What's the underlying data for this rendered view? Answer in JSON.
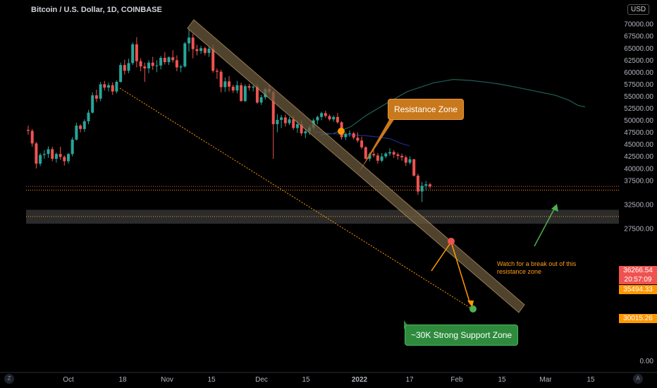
{
  "header": {
    "title": "Bitcoin / U.S. Dollar, 1D, COINBASE",
    "currency": "USD"
  },
  "chart_data": {
    "type": "candlestick",
    "title": "Bitcoin / U.S. Dollar, 1D, COINBASE",
    "ylim": [
      0,
      70000
    ],
    "y_ticks": [
      {
        "value": 70000,
        "label": "70000.00"
      },
      {
        "value": 67500,
        "label": "67500.00"
      },
      {
        "value": 65000,
        "label": "65000.00"
      },
      {
        "value": 62500,
        "label": "62500.00"
      },
      {
        "value": 60000,
        "label": "60000.00"
      },
      {
        "value": 57500,
        "label": "57500.00"
      },
      {
        "value": 55000,
        "label": "55000.00"
      },
      {
        "value": 52500,
        "label": "52500.00"
      },
      {
        "value": 50000,
        "label": "50000.00"
      },
      {
        "value": 47500,
        "label": "47500.00"
      },
      {
        "value": 45000,
        "label": "45000.00"
      },
      {
        "value": 42500,
        "label": "42500.00"
      },
      {
        "value": 40000,
        "label": "40000.00"
      },
      {
        "value": 37500,
        "label": "37500.00"
      },
      {
        "value": 32500,
        "label": "32500.00"
      },
      {
        "value": 27500,
        "label": "27500.00"
      },
      {
        "value": 0,
        "label": "0.00"
      }
    ],
    "x_ticks": [
      "Oct",
      "18",
      "Nov",
      "15",
      "Dec",
      "15",
      "2022",
      "17",
      "Feb",
      "15",
      "Mar",
      "15"
    ],
    "candles": [
      [
        48000,
        48900,
        47000,
        47800
      ],
      [
        47800,
        48200,
        44500,
        45200
      ],
      [
        45200,
        45500,
        40000,
        41000
      ],
      [
        41000,
        43200,
        40500,
        42800
      ],
      [
        42800,
        43800,
        42000,
        43000
      ],
      [
        43000,
        44600,
        42200,
        44000
      ],
      [
        44000,
        44500,
        41500,
        42000
      ],
      [
        42000,
        43300,
        41200,
        43000
      ],
      [
        43000,
        44500,
        41800,
        42400
      ],
      [
        42400,
        42700,
        40600,
        41500
      ],
      [
        41500,
        43200,
        41000,
        43000
      ],
      [
        43000,
        46500,
        42500,
        46000
      ],
      [
        46000,
        49500,
        45800,
        48900
      ],
      [
        48900,
        49200,
        47500,
        48200
      ],
      [
        48200,
        50200,
        47600,
        49800
      ],
      [
        49800,
        52200,
        49200,
        51600
      ],
      [
        51600,
        55800,
        51400,
        55200
      ],
      [
        55200,
        56400,
        53800,
        54500
      ],
      [
        54500,
        58000,
        54000,
        57500
      ],
      [
        57500,
        58200,
        56200,
        56800
      ],
      [
        56800,
        57800,
        56000,
        57300
      ],
      [
        57300,
        57900,
        55300,
        56000
      ],
      [
        56000,
        58300,
        55600,
        58000
      ],
      [
        58000,
        62000,
        57800,
        61500
      ],
      [
        61500,
        62600,
        59500,
        60300
      ],
      [
        60300,
        62800,
        59800,
        61900
      ],
      [
        61900,
        66200,
        61500,
        65800
      ],
      [
        65800,
        67300,
        61000,
        62300
      ],
      [
        62300,
        62900,
        60200,
        61200
      ],
      [
        61200,
        62000,
        58000,
        60800
      ],
      [
        60800,
        62500,
        59800,
        62000
      ],
      [
        62000,
        63200,
        60500,
        61300
      ],
      [
        61300,
        62500,
        60000,
        61400
      ],
      [
        61400,
        63400,
        60600,
        63000
      ],
      [
        63000,
        64200,
        61600,
        62100
      ],
      [
        62100,
        63300,
        61500,
        63100
      ],
      [
        63100,
        64600,
        62000,
        62500
      ],
      [
        62500,
        63500,
        60200,
        61000
      ],
      [
        61000,
        61500,
        60000,
        61200
      ],
      [
        61200,
        66300,
        61000,
        66000
      ],
      [
        66000,
        68800,
        64300,
        67200
      ],
      [
        67200,
        68000,
        62900,
        64800
      ],
      [
        64800,
        65700,
        63500,
        64400
      ],
      [
        64400,
        65500,
        63800,
        65000
      ],
      [
        65000,
        65300,
        63500,
        64000
      ],
      [
        64000,
        65300,
        63200,
        64900
      ],
      [
        64900,
        65800,
        59900,
        60300
      ],
      [
        60300,
        60800,
        58600,
        60100
      ],
      [
        60100,
        60500,
        55800,
        56900
      ],
      [
        56900,
        58900,
        55900,
        58100
      ],
      [
        58100,
        59200,
        56000,
        57000
      ],
      [
        57000,
        57400,
        55700,
        56200
      ],
      [
        56200,
        58200,
        55600,
        57300
      ],
      [
        57300,
        57800,
        53900,
        54000
      ],
      [
        54000,
        57500,
        53800,
        57100
      ],
      [
        57100,
        57600,
        56200,
        56800
      ],
      [
        56800,
        57300,
        56000,
        57000
      ],
      [
        57000,
        57500,
        53400,
        53700
      ],
      [
        53700,
        55300,
        53200,
        54800
      ],
      [
        54800,
        56800,
        54300,
        56500
      ],
      [
        56500,
        57400,
        55600,
        55900
      ],
      [
        55900,
        56100,
        42000,
        49200
      ],
      [
        49200,
        51300,
        47500,
        50100
      ],
      [
        50100,
        51100,
        48400,
        50600
      ],
      [
        50600,
        51200,
        48700,
        49400
      ],
      [
        49400,
        50700,
        49000,
        50200
      ],
      [
        50200,
        50900,
        48000,
        48400
      ],
      [
        48400,
        50000,
        47400,
        49200
      ],
      [
        49200,
        50000,
        46800,
        47300
      ],
      [
        47300,
        48200,
        46300,
        47700
      ],
      [
        47700,
        49000,
        47000,
        48500
      ],
      [
        48500,
        50400,
        48000,
        50000
      ],
      [
        50000,
        51000,
        49200,
        50700
      ],
      [
        50700,
        51800,
        50000,
        51500
      ],
      [
        51500,
        52000,
        50500,
        50900
      ],
      [
        50900,
        51200,
        49900,
        50200
      ],
      [
        50200,
        51000,
        49700,
        50700
      ],
      [
        50700,
        51500,
        49300,
        49600
      ],
      [
        49600,
        49800,
        46000,
        46500
      ],
      [
        46500,
        47500,
        45900,
        47200
      ],
      [
        47200,
        47900,
        46600,
        47300
      ],
      [
        47300,
        47600,
        46000,
        46400
      ],
      [
        46400,
        47500,
        45400,
        45800
      ],
      [
        45800,
        46600,
        44000,
        44400
      ],
      [
        44400,
        44600,
        41900,
        42000
      ],
      [
        42000,
        43300,
        41500,
        43000
      ],
      [
        43000,
        43800,
        42300,
        42700
      ],
      [
        42700,
        43200,
        41000,
        41600
      ],
      [
        41600,
        43200,
        41300,
        42500
      ],
      [
        42500,
        43400,
        42100,
        43100
      ],
      [
        43100,
        44200,
        42600,
        43400
      ],
      [
        43400,
        43800,
        42200,
        42900
      ],
      [
        42900,
        43300,
        41800,
        42600
      ],
      [
        42600,
        43100,
        41600,
        42300
      ],
      [
        42300,
        42700,
        40500,
        41200
      ],
      [
        41200,
        42500,
        40800,
        41900
      ],
      [
        41900,
        42000,
        38300,
        38500
      ],
      [
        38500,
        38900,
        34500,
        35200
      ],
      [
        35200,
        37200,
        33000,
        36400
      ],
      [
        36400,
        37400,
        35500,
        36700
      ],
      [
        36700,
        37000,
        35800,
        36266
      ]
    ],
    "moving_averages": [
      {
        "values": [
          [
            45500,
            47000
          ],
          [
            47300,
            47250
          ],
          [
            49800,
            48700
          ],
          [
            51900,
            51000
          ],
          [
            54800,
            53500
          ],
          [
            57800,
            56000
          ],
          [
            61500,
            57800
          ],
          [
            64300,
            58500
          ],
          [
            66700,
            58300
          ],
          [
            69100,
            57900
          ],
          [
            71000,
            57500
          ],
          [
            73500,
            56800
          ],
          [
            76200,
            56000
          ],
          [
            78800,
            55200
          ],
          [
            80800,
            54100
          ],
          [
            82000,
            53100
          ],
          [
            83000,
            52800
          ]
        ]
      },
      {
        "values": [
          [
            44500,
            47600
          ],
          [
            47300,
            47200
          ],
          [
            49300,
            47000
          ],
          [
            51900,
            46800
          ],
          [
            53800,
            46500
          ],
          [
            55300,
            46200
          ],
          [
            56900,
            45200
          ],
          [
            58100,
            44700
          ]
        ]
      }
    ],
    "levels": [
      {
        "label": "36266.54",
        "value": 36266.54
      },
      {
        "label": "20:57:09",
        "value": null
      },
      {
        "label": "35494.33",
        "value": 35494.33
      },
      {
        "label": "30015.26",
        "value": 30015.26
      }
    ],
    "annotations": {
      "resistance_zone": "Resistance Zone",
      "support_zone": "~30K Strong Support Zone",
      "note": "Watch for a break out of this\nresistance zone",
      "support_band": [
        28500,
        31400
      ]
    }
  },
  "colors": {
    "background": "#000000",
    "up": "#26a69a",
    "down": "#ef5350",
    "resistance_channel": "#c8a46e",
    "resistance_callout": "#c9781c",
    "support_callout": "#2e8b3d",
    "orange_dotted": "#ff9800",
    "arrow_green": "#4caf50",
    "ma_teal": "#1f5f55",
    "ma_blue": "#1e2a8c"
  },
  "footer_icons": [
    "Z",
    "A"
  ]
}
